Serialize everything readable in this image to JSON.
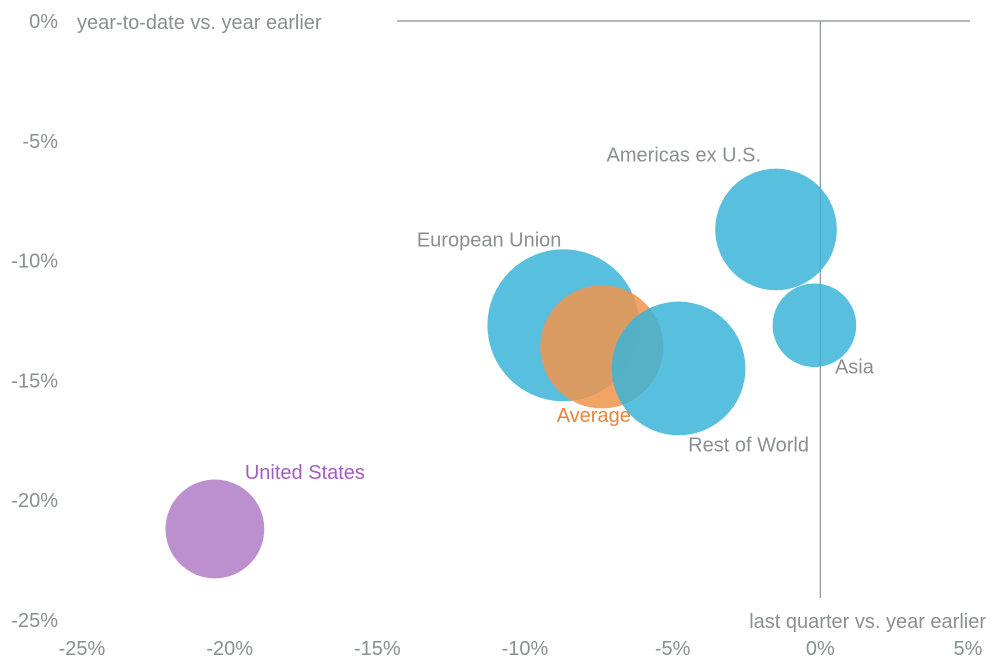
{
  "chart_data": {
    "type": "scatter",
    "title": "",
    "xlabel": "last quarter vs. year earlier",
    "ylabel": "year-to-date vs. year earlier",
    "xlim": [
      -0.25,
      0.05
    ],
    "ylim": [
      -0.25,
      0
    ],
    "grid": false,
    "x_ticks": [
      -0.25,
      -0.2,
      -0.15,
      -0.1,
      -0.05,
      0,
      0.05
    ],
    "x_tick_labels": [
      "-25%",
      "-20%",
      "-15%",
      "-10%",
      "-5%",
      "0%",
      "5%"
    ],
    "y_ticks": [
      0,
      -0.05,
      -0.1,
      -0.15,
      -0.2,
      -0.25
    ],
    "y_tick_labels": [
      "0%",
      "-5%",
      "-10%",
      "-15%",
      "-20%",
      "-25%"
    ],
    "series": [
      {
        "name": "European Union",
        "x": -0.087,
        "y": -0.127,
        "relative_size": 1.0,
        "color": "#3bb4d8"
      },
      {
        "name": "Average",
        "x": -0.074,
        "y": -0.136,
        "relative_size": 0.81,
        "color": "#f0944c"
      },
      {
        "name": "Rest of World",
        "x": -0.048,
        "y": -0.145,
        "relative_size": 0.88,
        "color": "#3bb4d8"
      },
      {
        "name": "Americas ex U.S.",
        "x": -0.015,
        "y": -0.087,
        "relative_size": 0.8,
        "color": "#3bb4d8"
      },
      {
        "name": "Asia",
        "x": -0.002,
        "y": -0.127,
        "relative_size": 0.55,
        "color": "#3bb4d8"
      },
      {
        "name": "United States",
        "x": -0.205,
        "y": -0.212,
        "relative_size": 0.65,
        "color": "#b07cc6"
      }
    ]
  },
  "colors": {
    "axis_line": "#9aa0a3",
    "tick_text": "#8a8f92",
    "label_text": "#8a8f92",
    "average_label": "#e8843c",
    "us_label": "#a55cc0"
  }
}
